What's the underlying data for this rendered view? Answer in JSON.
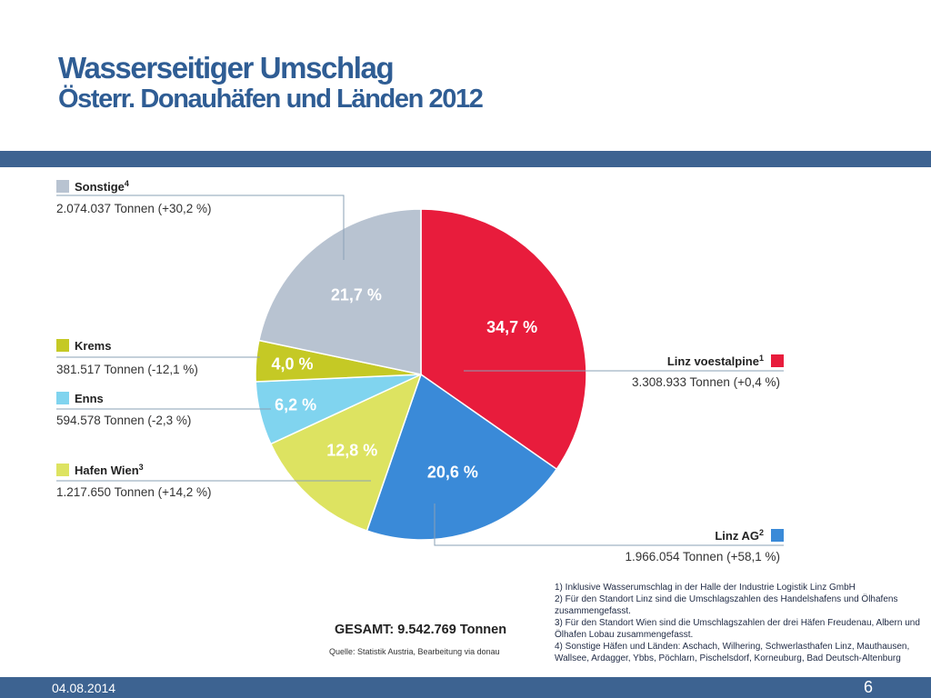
{
  "page": {
    "title": "Wasserseitiger Umschlag",
    "subtitle": "Österr. Donauhäfen und Länden 2012",
    "date": "04.08.2014",
    "page_number": "6",
    "band_color": "#3d6391",
    "title_color": "#2f5d94"
  },
  "chart_data": {
    "type": "pie",
    "title": "",
    "unit": "Tonnen",
    "total_label": "GESAMT: 9.542.769 Tonnen",
    "source": "Quelle: Statistik Austria, Bearbeitung via donau",
    "slices": [
      {
        "name": "Linz voestalpine",
        "note_ref": "1",
        "percent": 34.7,
        "percent_label": "34,7 %",
        "detail": "3.308.933 Tonnen (+0,4 %)",
        "color": "#e81c3c"
      },
      {
        "name": "Linz AG",
        "note_ref": "2",
        "percent": 20.6,
        "percent_label": "20,6 %",
        "detail": "1.966.054 Tonnen (+58,1 %)",
        "color": "#3a8ad8"
      },
      {
        "name": "Hafen Wien",
        "note_ref": "3",
        "percent": 12.8,
        "percent_label": "12,8 %",
        "detail": "1.217.650 Tonnen (+14,2 %)",
        "color": "#dde361"
      },
      {
        "name": "Enns",
        "note_ref": "",
        "percent": 6.2,
        "percent_label": "6,2 %",
        "detail": "594.578 Tonnen (-2,3 %)",
        "color": "#80d4ef"
      },
      {
        "name": "Krems",
        "note_ref": "",
        "percent": 4.0,
        "percent_label": "4,0 %",
        "detail": "381.517 Tonnen (-12,1 %)",
        "color": "#c5c925"
      },
      {
        "name": "Sonstige",
        "note_ref": "4",
        "percent": 21.7,
        "percent_label": "21,7 %",
        "detail": "2.074.037 Tonnen (+30,2 %)",
        "color": "#b8c3d1"
      }
    ]
  },
  "notes": [
    "1) Inklusive Wasserumschlag in der Halle der Industrie Logistik Linz GmbH",
    "2) Für den Standort Linz sind die Umschlagszahlen des Handelshafens und Ölhafens zusammengefasst.",
    "3) Für den Standort Wien sind die Umschlagszahlen der drei Häfen Freudenau, Albern und Ölhafen Lobau zusammengefasst.",
    "4) Sonstige Häfen und Länden: Aschach, Wilhering, Schwerlasthafen Linz, Mauthausen, Wallsee, Ardagger, Ybbs, Pöchlarn, Pischelsdorf, Korneuburg, Bad Deutsch-Altenburg"
  ]
}
